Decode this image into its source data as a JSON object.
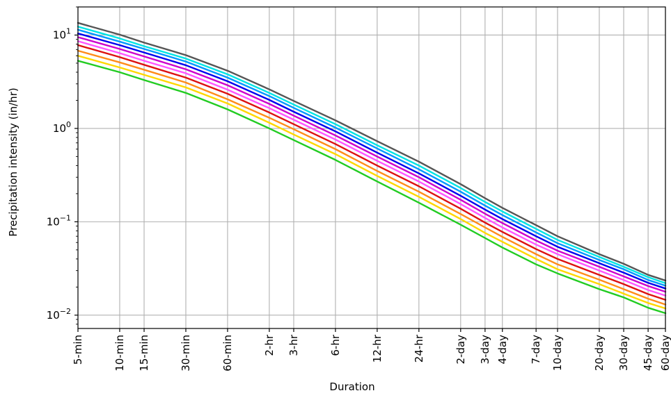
{
  "chart_data": {
    "type": "line",
    "title": "",
    "xlabel": "Duration",
    "ylabel": "Precipitation intensity (in/hr)",
    "y_scale": "log",
    "ylim": [
      0.0072,
      20
    ],
    "grid": true,
    "legend": "none",
    "categories": [
      "5-min",
      "10-min",
      "15-min",
      "30-min",
      "60-min",
      "2-hr",
      "3-hr",
      "6-hr",
      "12-hr",
      "24-hr",
      "2-day",
      "3-day",
      "4-day",
      "7-day",
      "10-day",
      "20-day",
      "30-day",
      "45-day",
      "60-day"
    ],
    "x_minutes": [
      5,
      10,
      15,
      30,
      60,
      120,
      180,
      360,
      720,
      1440,
      2880,
      4320,
      5760,
      10080,
      14400,
      28800,
      43200,
      64800,
      86400
    ],
    "y_ticks": [
      {
        "value": 0.01,
        "base": "10",
        "exp": "−2"
      },
      {
        "value": 0.1,
        "base": "10",
        "exp": "−1"
      },
      {
        "value": 1,
        "base": "10",
        "exp": "0"
      },
      {
        "value": 10,
        "base": "10",
        "exp": "1"
      }
    ],
    "series": [
      {
        "color": "#22cc22",
        "values": [
          5.3,
          4.0,
          3.3,
          2.4,
          1.6,
          1.0,
          0.75,
          0.46,
          0.27,
          0.16,
          0.093,
          0.067,
          0.053,
          0.035,
          0.028,
          0.019,
          0.0155,
          0.012,
          0.0105
        ]
      },
      {
        "color": "#ffd700",
        "values": [
          6.0,
          4.5,
          3.75,
          2.75,
          1.85,
          1.15,
          0.86,
          0.53,
          0.31,
          0.185,
          0.107,
          0.076,
          0.061,
          0.04,
          0.031,
          0.0215,
          0.017,
          0.0135,
          0.0118
        ]
      },
      {
        "color": "#ff8c1a",
        "values": [
          6.8,
          5.1,
          4.25,
          3.1,
          2.05,
          1.3,
          0.98,
          0.6,
          0.35,
          0.21,
          0.121,
          0.087,
          0.069,
          0.045,
          0.035,
          0.024,
          0.019,
          0.015,
          0.013
        ]
      },
      {
        "color": "#dd1111",
        "values": [
          7.8,
          5.8,
          4.8,
          3.5,
          2.35,
          1.48,
          1.11,
          0.68,
          0.4,
          0.24,
          0.138,
          0.098,
          0.078,
          0.051,
          0.04,
          0.027,
          0.0215,
          0.0168,
          0.0146
        ]
      },
      {
        "color": "#ff55ff",
        "values": [
          8.6,
          6.4,
          5.3,
          3.9,
          2.6,
          1.65,
          1.24,
          0.76,
          0.45,
          0.27,
          0.155,
          0.11,
          0.087,
          0.057,
          0.045,
          0.03,
          0.0238,
          0.0186,
          0.0162
        ]
      },
      {
        "color": "#cc00cc",
        "values": [
          9.5,
          7.1,
          5.9,
          4.3,
          2.9,
          1.83,
          1.37,
          0.84,
          0.5,
          0.3,
          0.172,
          0.122,
          0.097,
          0.063,
          0.049,
          0.033,
          0.026,
          0.0205,
          0.0178
        ]
      },
      {
        "color": "#0000ee",
        "values": [
          10.4,
          7.8,
          6.5,
          4.75,
          3.2,
          2.02,
          1.51,
          0.93,
          0.55,
          0.33,
          0.19,
          0.135,
          0.107,
          0.07,
          0.054,
          0.036,
          0.0285,
          0.0222,
          0.0193
        ]
      },
      {
        "color": "#0099ff",
        "values": [
          11.4,
          8.5,
          7.1,
          5.2,
          3.5,
          2.22,
          1.66,
          1.02,
          0.61,
          0.365,
          0.21,
          0.149,
          0.118,
          0.077,
          0.059,
          0.039,
          0.031,
          0.0238,
          0.0207
        ]
      },
      {
        "color": "#00e5e5",
        "values": [
          12.3,
          9.2,
          7.6,
          5.6,
          3.8,
          2.4,
          1.8,
          1.11,
          0.66,
          0.4,
          0.23,
          0.163,
          0.129,
          0.084,
          0.064,
          0.042,
          0.033,
          0.0255,
          0.022
        ]
      },
      {
        "color": "#555555",
        "values": [
          13.5,
          10.1,
          8.3,
          6.1,
          4.15,
          2.62,
          1.97,
          1.22,
          0.73,
          0.44,
          0.253,
          0.179,
          0.141,
          0.092,
          0.07,
          0.045,
          0.0355,
          0.027,
          0.0235
        ]
      }
    ]
  }
}
